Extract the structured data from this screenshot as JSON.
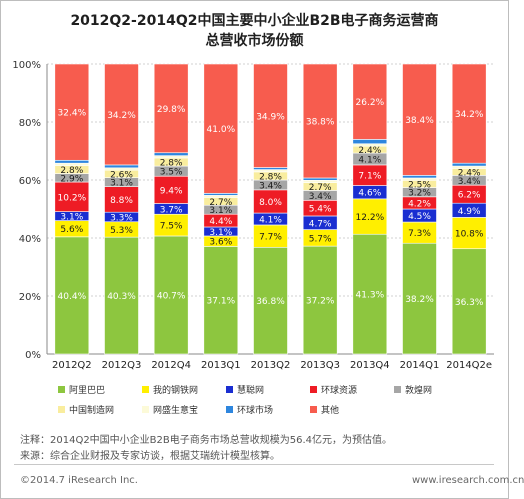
{
  "title_line1": "2012Q2-2014Q2中国主要中小企业B2B电子商务运营商",
  "title_line2": "总营收市场份额",
  "chart_data": {
    "type": "bar",
    "stacked": true,
    "normalized": true,
    "categories": [
      "2012Q2",
      "2012Q3",
      "2012Q4",
      "2013Q1",
      "2013Q2",
      "2013Q3",
      "2013Q4",
      "2014Q1",
      "2014Q2e"
    ],
    "y_ticks": [
      "0%",
      "20%",
      "40%",
      "60%",
      "80%",
      "100%"
    ],
    "ylim": [
      0,
      100
    ],
    "grid": true,
    "legend_position": "bottom",
    "series": [
      {
        "name": "阿里巴巴",
        "color": "#8dc63f",
        "label_color": "#ffffff",
        "values": [
          40.4,
          40.3,
          40.7,
          37.1,
          36.8,
          37.2,
          41.3,
          38.2,
          36.3
        ],
        "labels": [
          "40.4%",
          "40.3%",
          "40.7%",
          "37.1%",
          "36.8%",
          "37.2%",
          "41.3%",
          "38.2%",
          "36.3%"
        ]
      },
      {
        "name": "我的钢铁网",
        "color": "#ffef00",
        "label_color": "#1a1a1a",
        "values": [
          5.6,
          5.3,
          7.5,
          3.6,
          7.7,
          5.7,
          12.2,
          7.3,
          10.8
        ],
        "labels": [
          "5.6%",
          "5.3%",
          "7.5%",
          "3.6%",
          "7.7%",
          "5.7%",
          "12.2%",
          "7.3%",
          "10.8%"
        ]
      },
      {
        "name": "慧聪网",
        "color": "#1a2ed1",
        "label_color": "#ffffff",
        "values": [
          3.1,
          3.3,
          3.7,
          3.1,
          4.1,
          4.7,
          4.6,
          4.5,
          4.9
        ],
        "labels": [
          "3.1%",
          "3.3%",
          "3.7%",
          "3.1%",
          "4.1%",
          "4.7%",
          "4.6%",
          "4.5%",
          "4.9%"
        ]
      },
      {
        "name": "环球资源",
        "color": "#ee1c25",
        "label_color": "#ffffff",
        "values": [
          10.2,
          8.8,
          9.4,
          4.4,
          8.0,
          5.4,
          7.1,
          4.2,
          6.2
        ],
        "labels": [
          "10.2%",
          "8.8%",
          "9.4%",
          "4.4%",
          "8.0%",
          "5.4%",
          "7.1%",
          "4.2%",
          "6.2%"
        ]
      },
      {
        "name": "敦煌网",
        "color": "#a6a6a6",
        "label_color": "#1a1a1a",
        "values": [
          2.9,
          3.1,
          3.5,
          3.1,
          3.4,
          3.4,
          4.1,
          3.2,
          3.4
        ],
        "labels": [
          "2.9%",
          "3.1%",
          "3.5%",
          "3.1%",
          "3.4%",
          "3.4%",
          "4.1%",
          "3.2%",
          "3.4%"
        ]
      },
      {
        "name": "中国制造网",
        "color": "#f9ed9e",
        "label_color": "#1a1a1a",
        "values": [
          2.8,
          2.6,
          2.8,
          2.7,
          2.8,
          2.7,
          2.4,
          2.5,
          2.4
        ],
        "labels": [
          "2.8%",
          "2.6%",
          "2.8%",
          "2.7%",
          "2.8%",
          "2.7%",
          "2.4%",
          "2.5%",
          "2.4%"
        ]
      },
      {
        "name": "网盛生意宝",
        "color": "#fcfad8",
        "label_color": "#1a1a1a",
        "values": [
          0.8,
          0.8,
          0.8,
          0.7,
          0.8,
          0.8,
          0.8,
          0.8,
          0.8
        ],
        "labels": [
          "",
          "",
          "",
          "",
          "",
          "",
          "",
          "",
          ""
        ]
      },
      {
        "name": "环球市场",
        "color": "#2e86de",
        "label_color": "#ffffff",
        "values": [
          1.0,
          1.0,
          1.0,
          0.7,
          0.7,
          0.8,
          1.5,
          0.9,
          1.0
        ],
        "labels": [
          "",
          "",
          "",
          "",
          "",
          "",
          "",
          "",
          ""
        ]
      },
      {
        "name": "其他",
        "color": "#f75c4e",
        "label_color": "#ffffff",
        "values": [
          32.4,
          34.2,
          29.8,
          41.0,
          34.9,
          38.8,
          26.2,
          38.4,
          34.2
        ],
        "labels": [
          "32.4%",
          "34.2%",
          "29.8%",
          "41.0%",
          "34.9%",
          "38.8%",
          "26.2%",
          "38.4%",
          "34.2%"
        ]
      }
    ]
  },
  "note_line1": "注释：2014Q2中国中小企业B2B电子商务市场总营收规模为56.4亿元，为预估值。",
  "note_line2": "来源：综合企业财报及专家访谈，根据艾瑞统计模型核算。",
  "copyright": "©2014.7 iResearch Inc.",
  "website": "www.iresearch.com.cn"
}
